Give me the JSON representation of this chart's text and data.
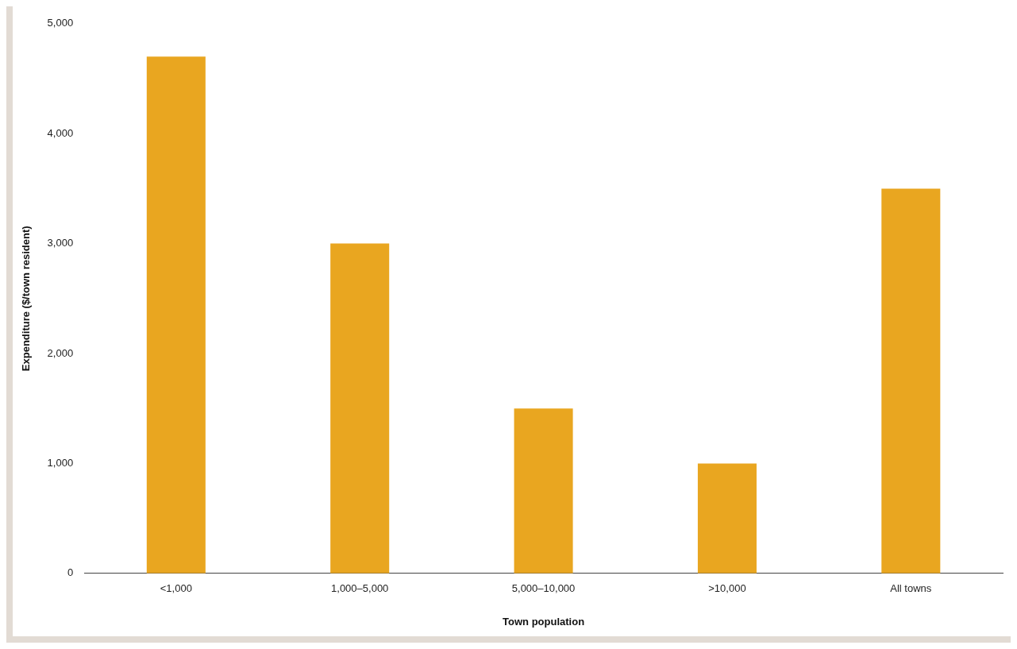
{
  "chart_data": {
    "type": "bar",
    "xlabel": "Town population",
    "ylabel": "Expenditure ($/town resident)",
    "categories": [
      "<1,000",
      "1,000–5,000",
      "5,000–10,000",
      ">10,000",
      "All towns"
    ],
    "values": [
      4700,
      3000,
      1500,
      1000,
      3500
    ],
    "color": "#e9a620",
    "ylim": [
      0,
      5000
    ],
    "yticks": [
      {
        "value": 0,
        "label": "0"
      },
      {
        "value": 1000,
        "label": "1,000"
      },
      {
        "value": 2000,
        "label": "2,000"
      },
      {
        "value": 3000,
        "label": "3,000"
      },
      {
        "value": 4000,
        "label": "4,000"
      },
      {
        "value": 5000,
        "label": "5,000"
      }
    ],
    "grid": false,
    "legend": false
  }
}
